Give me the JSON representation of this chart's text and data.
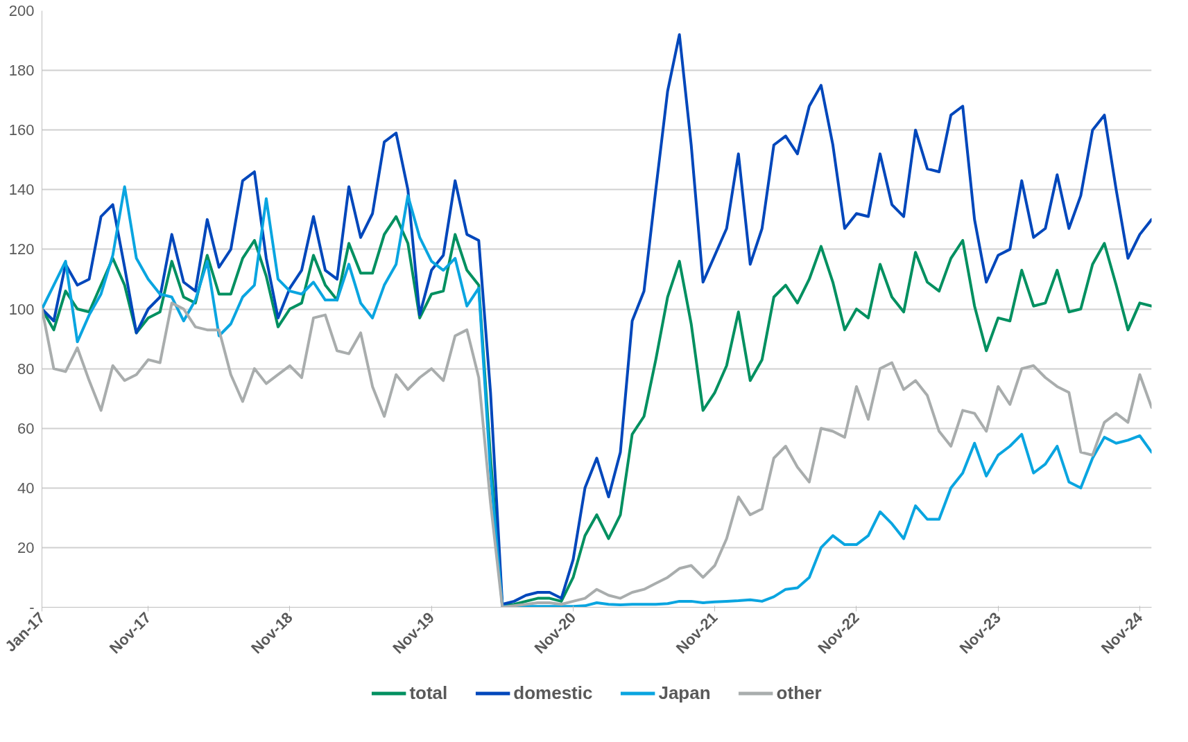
{
  "chart_data": {
    "type": "line",
    "categories": [
      "Jan-17",
      null,
      null,
      null,
      null,
      null,
      null,
      null,
      null,
      "Nov-17",
      null,
      null,
      null,
      null,
      null,
      null,
      null,
      null,
      null,
      null,
      null,
      "Nov-18",
      null,
      null,
      null,
      null,
      null,
      null,
      null,
      null,
      null,
      null,
      null,
      "Nov-19",
      null,
      null,
      null,
      null,
      null,
      null,
      null,
      null,
      null,
      null,
      null,
      "Nov-20",
      null,
      null,
      null,
      null,
      null,
      null,
      null,
      null,
      null,
      null,
      null,
      "Nov-21",
      null,
      null,
      null,
      null,
      null,
      null,
      null,
      null,
      null,
      null,
      null,
      "Nov-22",
      null,
      null,
      null,
      null,
      null,
      null,
      null,
      null,
      null,
      null,
      null,
      "Nov-23",
      null,
      null,
      null,
      null,
      null,
      null,
      null,
      null,
      null,
      null,
      null,
      "Nov-24",
      null
    ],
    "series": [
      {
        "name": "total",
        "color": "#009060",
        "values": [
          100,
          93,
          106,
          100,
          99,
          108,
          117,
          108,
          92,
          97,
          99,
          116,
          104,
          102,
          118,
          105,
          105,
          117,
          123,
          111,
          94,
          100,
          102,
          118,
          108,
          103,
          122,
          112,
          112,
          125,
          131,
          122,
          97,
          105,
          106,
          125,
          113,
          108,
          50,
          0.5,
          1,
          2,
          3,
          3,
          2,
          10,
          24,
          31,
          23,
          31,
          58,
          64,
          83,
          104,
          116,
          95,
          66,
          72,
          81,
          99,
          76,
          83,
          104,
          108,
          102,
          110,
          121,
          109,
          93,
          100,
          97,
          115,
          104,
          99,
          119,
          109,
          106,
          117,
          123,
          101,
          86,
          97,
          96,
          113,
          101,
          102,
          113,
          99,
          100,
          115,
          122,
          108,
          93,
          102,
          101
        ]
      },
      {
        "name": "domestic",
        "color": "#0047bb",
        "values": [
          100,
          96,
          115,
          108,
          110,
          131,
          135,
          114,
          92,
          100,
          104,
          125,
          109,
          106,
          130,
          114,
          120,
          143,
          146,
          117,
          97,
          107,
          113,
          131,
          113,
          110,
          141,
          124,
          132,
          156,
          159,
          140,
          98,
          113,
          118,
          143,
          125,
          123,
          72,
          1,
          2,
          4,
          5,
          5,
          3,
          16,
          40,
          50,
          37,
          52,
          96,
          106,
          140,
          173,
          192,
          155,
          109,
          118,
          127,
          152,
          115,
          127,
          155,
          158,
          152,
          168,
          175,
          155,
          127,
          132,
          131,
          152,
          135,
          131,
          160,
          147,
          146,
          165,
          168,
          130,
          109,
          118,
          120,
          143,
          124,
          127,
          145,
          127,
          138,
          160,
          165,
          140,
          117,
          125,
          130
        ]
      },
      {
        "name": "Japan",
        "color": "#0aa5e0",
        "values": [
          100,
          108,
          116,
          89,
          98,
          105,
          118,
          141,
          117,
          110,
          105,
          104,
          96,
          103,
          116,
          91,
          95,
          104,
          108,
          137,
          110,
          106,
          105,
          109,
          103,
          103,
          115,
          102,
          97,
          108,
          115,
          138,
          124,
          116,
          113,
          117,
          101,
          107,
          45,
          0.3,
          0.3,
          0.3,
          0.3,
          0.3,
          0.3,
          0.3,
          0.5,
          1.5,
          1,
          0.8,
          1,
          1,
          1,
          1.2,
          2,
          2,
          1.5,
          1.8,
          2,
          2.2,
          2.5,
          2,
          3.5,
          6,
          6.5,
          10,
          20,
          24,
          21,
          21,
          24,
          32,
          28,
          23,
          34,
          29.5,
          29.5,
          40,
          45,
          55,
          44,
          51,
          54,
          58,
          45,
          48,
          54,
          42,
          40,
          50,
          57,
          55,
          56,
          57.5,
          52
        ]
      },
      {
        "name": "other",
        "color": "#a9adad",
        "values": [
          100,
          80,
          79,
          87,
          76,
          66,
          81,
          76,
          78,
          83,
          82,
          102,
          100,
          94,
          93,
          93,
          78,
          69,
          80,
          75,
          78,
          81,
          77,
          97,
          98,
          86,
          85,
          92,
          74,
          64,
          78,
          73,
          77,
          80,
          76,
          91,
          93,
          77,
          35,
          0,
          0.5,
          1,
          1.5,
          1.5,
          1,
          2,
          3,
          6,
          4,
          3,
          5,
          6,
          8,
          10,
          13,
          14,
          10,
          14,
          23,
          37,
          31,
          33,
          50,
          54,
          47,
          42,
          60,
          59,
          57,
          74,
          63,
          80,
          82,
          73,
          76,
          71,
          59,
          54,
          66,
          65,
          59,
          74,
          68,
          80,
          81,
          77,
          74,
          72,
          52,
          51,
          62,
          65,
          62,
          78,
          67
        ]
      }
    ],
    "ylim": [
      0,
      200
    ],
    "yticks": [
      {
        "value": 0,
        "label": "-"
      },
      20,
      40,
      60,
      80,
      100,
      120,
      140,
      160,
      180,
      200
    ],
    "grid": "y",
    "legend": "bottom",
    "line_style": "solid"
  }
}
